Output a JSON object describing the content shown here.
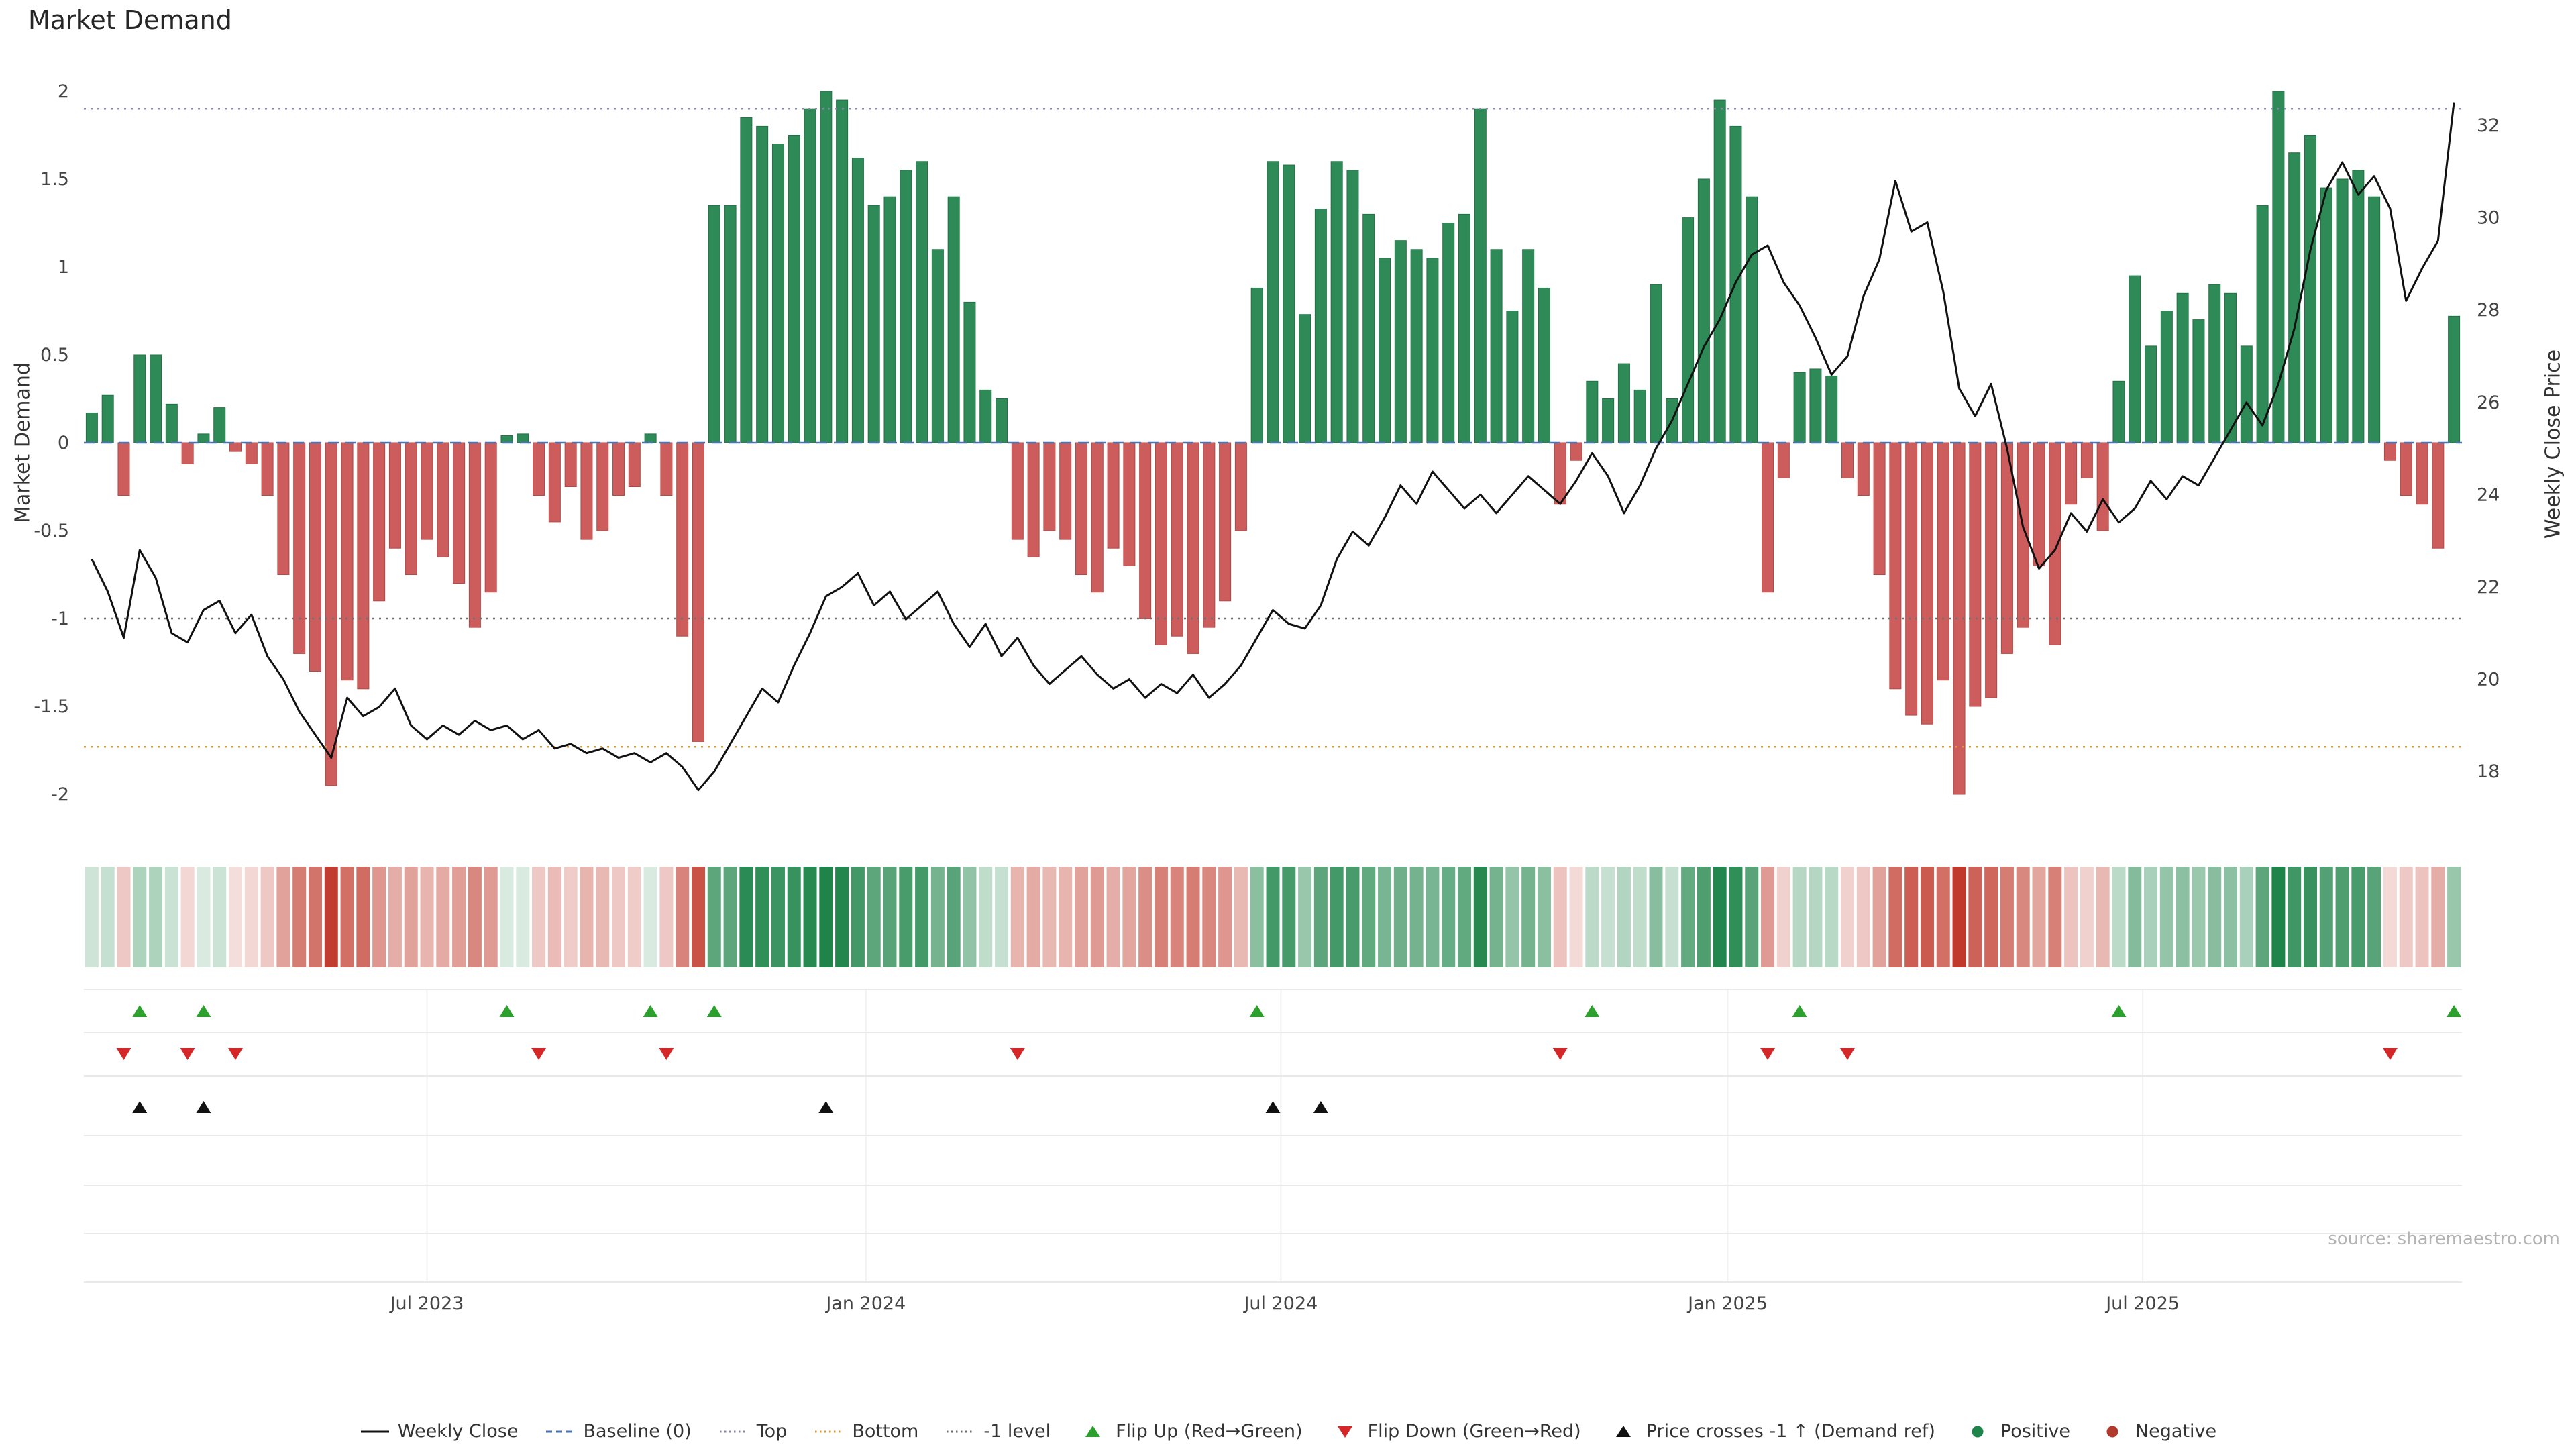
{
  "title": "Market Demand",
  "source": "source: sharemaestro.com",
  "axes": {
    "left_label": "Market Demand",
    "right_label": "Weekly Close Price",
    "left_ticks": [
      {
        "label": "2",
        "value": 2
      },
      {
        "label": "1.5",
        "value": 1.5
      },
      {
        "label": "1",
        "value": 1
      },
      {
        "label": "0.5",
        "value": 0.5
      },
      {
        "label": "0",
        "value": 0
      },
      {
        "label": "-0.5",
        "value": -0.5
      },
      {
        "label": "-1",
        "value": -1
      },
      {
        "label": "-1.5",
        "value": -1.5
      },
      {
        "label": "-2",
        "value": -2
      }
    ],
    "right_ticks": [
      {
        "label": "32",
        "value": 32
      },
      {
        "label": "30",
        "value": 30
      },
      {
        "label": "28",
        "value": 28
      },
      {
        "label": "26",
        "value": 26
      },
      {
        "label": "24",
        "value": 24
      },
      {
        "label": "22",
        "value": 22
      },
      {
        "label": "20",
        "value": 20
      },
      {
        "label": "18",
        "value": 18
      }
    ],
    "x_ticks": [
      {
        "label": "Jul 2023",
        "week": 21
      },
      {
        "label": "Jan 2024",
        "week": 48.5
      },
      {
        "label": "Jul 2024",
        "week": 74.5
      },
      {
        "label": "Jan 2025",
        "week": 102.5
      },
      {
        "label": "Jul 2025",
        "week": 128.5
      }
    ]
  },
  "chart_data": {
    "type": "bar",
    "secondary_type": "line",
    "title": "Market Demand",
    "n_weeks": 149,
    "ylim_demand": [
      -2,
      2
    ],
    "ylim_price": [
      18,
      32
    ],
    "grid": false,
    "legend_position": "bottom",
    "demand": [
      0.17,
      0.27,
      -0.3,
      0.5,
      0.5,
      0.22,
      -0.12,
      0.05,
      0.2,
      -0.05,
      -0.12,
      -0.3,
      -0.75,
      -1.2,
      -1.3,
      -1.95,
      -1.35,
      -1.4,
      -0.9,
      -0.6,
      -0.75,
      -0.55,
      -0.65,
      -0.8,
      -1.05,
      -0.85,
      0.04,
      0.05,
      -0.3,
      -0.45,
      -0.25,
      -0.55,
      -0.5,
      -0.3,
      -0.25,
      0.05,
      -0.3,
      -1.1,
      -1.7,
      1.35,
      1.35,
      1.85,
      1.8,
      1.7,
      1.75,
      1.9,
      2.0,
      1.95,
      1.62,
      1.35,
      1.4,
      1.55,
      1.6,
      1.1,
      1.4,
      0.8,
      0.3,
      0.25,
      -0.55,
      -0.65,
      -0.5,
      -0.55,
      -0.75,
      -0.85,
      -0.6,
      -0.7,
      -1.0,
      -1.15,
      -1.1,
      -1.2,
      -1.05,
      -0.9,
      -0.5,
      0.88,
      1.6,
      1.58,
      0.73,
      1.33,
      1.6,
      1.55,
      1.3,
      1.05,
      1.15,
      1.1,
      1.05,
      1.25,
      1.3,
      1.9,
      1.1,
      0.75,
      1.1,
      0.88,
      -0.35,
      -0.1,
      0.35,
      0.25,
      0.45,
      0.3,
      0.9,
      0.25,
      1.28,
      1.5,
      1.95,
      1.8,
      1.4,
      -0.85,
      -0.2,
      0.4,
      0.42,
      0.38,
      -0.2,
      -0.3,
      -0.75,
      -1.4,
      -1.55,
      -1.6,
      -1.35,
      -2.0,
      -1.5,
      -1.45,
      -1.2,
      -1.05,
      -0.7,
      -1.15,
      -0.35,
      -0.2,
      -0.5,
      0.35,
      0.95,
      0.55,
      0.75,
      0.85,
      0.7,
      0.9,
      0.85,
      0.55,
      1.35,
      2.0,
      1.65,
      1.75,
      1.45,
      1.5,
      1.55,
      1.4,
      -0.1,
      -0.3,
      -0.35,
      -0.6,
      0.72
    ],
    "weekly_close": [
      22.6,
      21.9,
      20.9,
      22.8,
      22.2,
      21.0,
      20.8,
      21.5,
      21.7,
      21.0,
      21.4,
      20.5,
      20.0,
      19.3,
      18.8,
      18.3,
      19.6,
      19.2,
      19.4,
      19.8,
      19.0,
      18.7,
      19.0,
      18.8,
      19.1,
      18.9,
      19.0,
      18.7,
      18.9,
      18.5,
      18.6,
      18.4,
      18.5,
      18.3,
      18.4,
      18.2,
      18.4,
      18.1,
      17.6,
      18.0,
      18.6,
      19.2,
      19.8,
      19.5,
      20.3,
      21.0,
      21.8,
      22.0,
      22.3,
      21.6,
      21.9,
      21.3,
      21.6,
      21.9,
      21.2,
      20.7,
      21.2,
      20.5,
      20.9,
      20.3,
      19.9,
      20.2,
      20.5,
      20.1,
      19.8,
      20.0,
      19.6,
      19.9,
      19.7,
      20.1,
      19.6,
      19.9,
      20.3,
      20.9,
      21.5,
      21.2,
      21.1,
      21.6,
      22.6,
      23.2,
      22.9,
      23.5,
      24.2,
      23.8,
      24.5,
      24.1,
      23.7,
      24.0,
      23.6,
      24.0,
      24.4,
      24.1,
      23.8,
      24.3,
      24.9,
      24.4,
      23.6,
      24.2,
      25.0,
      25.6,
      26.4,
      27.2,
      27.8,
      28.6,
      29.2,
      29.4,
      28.6,
      28.1,
      27.4,
      26.6,
      27.0,
      28.3,
      29.1,
      30.8,
      29.7,
      29.9,
      28.4,
      26.3,
      25.7,
      26.4,
      25.0,
      23.3,
      22.4,
      22.8,
      23.6,
      23.2,
      23.9,
      23.4,
      23.7,
      24.3,
      23.9,
      24.4,
      24.2,
      24.8,
      25.4,
      26.0,
      25.5,
      26.4,
      27.6,
      29.3,
      30.6,
      31.2,
      30.5,
      30.9,
      30.2,
      28.2,
      28.9,
      29.5,
      32.5
    ],
    "reference_lines": {
      "baseline": 0,
      "top": 1.9,
      "minus_one": -1,
      "bottom": -1.73
    },
    "markers": {
      "flip_up_weeks": [
        3,
        7,
        26,
        35,
        39,
        73,
        94,
        107,
        127,
        148
      ],
      "flip_down_weeks": [
        2,
        6,
        9,
        28,
        36,
        58,
        92,
        105,
        110,
        144
      ],
      "price_cross_weeks": [
        3,
        7,
        46,
        74,
        77
      ]
    },
    "colors": {
      "positive": "#2e8b57",
      "positive_edge": "#256f46",
      "negative": "#cd5c5c",
      "negative_edge": "#b04a46",
      "line": "#111111",
      "baseline": "#4c72b0",
      "top": "#8888a8",
      "minus_one": "#707070",
      "bottom": "#dd9933",
      "flip_up": "#2ca02c",
      "flip_down": "#d62728",
      "price_cross": "#111111",
      "heat_positive": "#1e8449",
      "heat_negative": "#c0392b",
      "positive_dot": "#1e8449",
      "negative_dot": "#b03a2e"
    }
  },
  "legend": [
    {
      "label": "Weekly Close",
      "type": "line",
      "color": "#111111"
    },
    {
      "label": "Baseline (0)",
      "type": "dashed",
      "color": "#4c72b0"
    },
    {
      "label": "Top",
      "type": "dotted",
      "color": "#8888a8"
    },
    {
      "label": "Bottom",
      "type": "dotted",
      "color": "#dd9933"
    },
    {
      "label": "-1 level",
      "type": "dotted",
      "color": "#707070"
    },
    {
      "label": "Flip Up (Red→Green)",
      "type": "triangle-up",
      "color": "#2ca02c"
    },
    {
      "label": "Flip Down (Green→Red)",
      "type": "triangle-down",
      "color": "#d62728"
    },
    {
      "label": "Price crosses -1 ↑ (Demand ref)",
      "type": "triangle-up",
      "color": "#111111"
    },
    {
      "label": "Positive",
      "type": "dot",
      "color": "#1e8449"
    },
    {
      "label": "Negative",
      "type": "dot",
      "color": "#b03a2e"
    }
  ]
}
